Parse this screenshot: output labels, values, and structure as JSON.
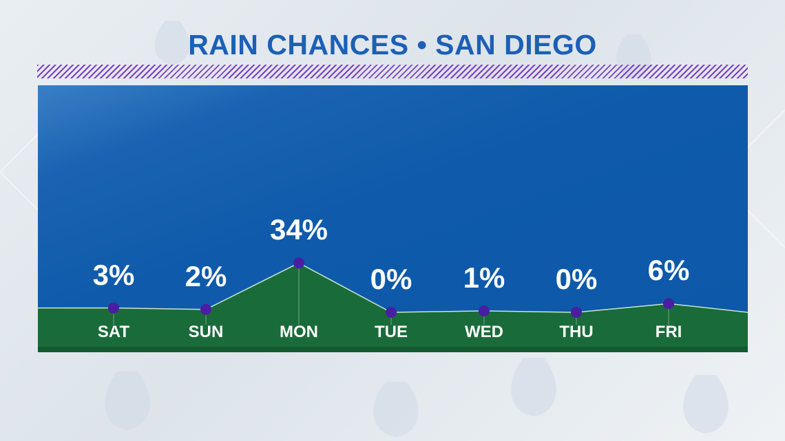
{
  "colors": {
    "title": "#1c60b6",
    "panel": "#0d58a8",
    "area": "#1a6b3a",
    "point": "#4a1ea3",
    "hatch": "#7d3fc3"
  },
  "chart_data": {
    "type": "area",
    "title": "RAIN CHANCES • SAN DIEGO",
    "categories": [
      "SAT",
      "SUN",
      "MON",
      "TUE",
      "WED",
      "THU",
      "FRI"
    ],
    "values": [
      3,
      2,
      34,
      0,
      1,
      0,
      6
    ],
    "value_labels": [
      "3%",
      "2%",
      "34%",
      "0%",
      "1%",
      "0%",
      "6%"
    ],
    "ylim": [
      0,
      100
    ],
    "grid": false,
    "legend": "none"
  }
}
